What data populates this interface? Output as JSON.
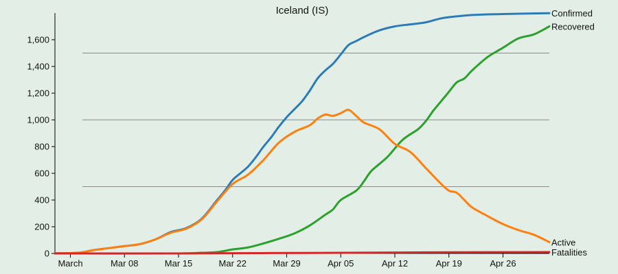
{
  "chart_data": {
    "type": "line",
    "title": "Iceland (IS)",
    "xlabel": "",
    "ylabel": "",
    "x_start": "2020-02-28",
    "x_end": "2020-05-02",
    "x_ticks": [
      {
        "date": "2020-03-01",
        "label": "March"
      },
      {
        "date": "2020-03-08",
        "label": "Mar 08"
      },
      {
        "date": "2020-03-15",
        "label": "Mar 15"
      },
      {
        "date": "2020-03-22",
        "label": "Mar 22"
      },
      {
        "date": "2020-03-29",
        "label": "Mar 29"
      },
      {
        "date": "2020-04-05",
        "label": "Apr 05"
      },
      {
        "date": "2020-04-12",
        "label": "Apr 12"
      },
      {
        "date": "2020-04-19",
        "label": "Apr 19"
      },
      {
        "date": "2020-04-26",
        "label": "Apr 26"
      }
    ],
    "ylim": [
      0,
      1800
    ],
    "y_ticks": [
      {
        "value": 0,
        "label": "0"
      },
      {
        "value": 200,
        "label": "200"
      },
      {
        "value": 400,
        "label": "400"
      },
      {
        "value": 600,
        "label": "600"
      },
      {
        "value": 800,
        "label": "800"
      },
      {
        "value": 1000,
        "label": "1,000"
      },
      {
        "value": 1200,
        "label": "1,200"
      },
      {
        "value": 1400,
        "label": "1,400"
      },
      {
        "value": 1600,
        "label": "1,600"
      }
    ],
    "gridlines": [
      500,
      1000,
      1500
    ],
    "legend": "line-end labels",
    "series": [
      {
        "name": "Confirmed",
        "color": "#2b7bb9",
        "points": [
          [
            "2020-02-28",
            1
          ],
          [
            "2020-03-02",
            5
          ],
          [
            "2020-03-04",
            25
          ],
          [
            "2020-03-06",
            40
          ],
          [
            "2020-03-08",
            55
          ],
          [
            "2020-03-10",
            70
          ],
          [
            "2020-03-12",
            105
          ],
          [
            "2020-03-14",
            160
          ],
          [
            "2020-03-16",
            190
          ],
          [
            "2020-03-18",
            260
          ],
          [
            "2020-03-20",
            400
          ],
          [
            "2020-03-21",
            470
          ],
          [
            "2020-03-22",
            550
          ],
          [
            "2020-03-23",
            600
          ],
          [
            "2020-03-24",
            650
          ],
          [
            "2020-03-25",
            720
          ],
          [
            "2020-03-26",
            800
          ],
          [
            "2020-03-27",
            870
          ],
          [
            "2020-03-28",
            950
          ],
          [
            "2020-03-29",
            1020
          ],
          [
            "2020-03-30",
            1080
          ],
          [
            "2020-03-31",
            1140
          ],
          [
            "2020-04-01",
            1220
          ],
          [
            "2020-04-02",
            1310
          ],
          [
            "2020-04-03",
            1370
          ],
          [
            "2020-04-04",
            1420
          ],
          [
            "2020-04-05",
            1490
          ],
          [
            "2020-04-06",
            1560
          ],
          [
            "2020-04-07",
            1590
          ],
          [
            "2020-04-08",
            1620
          ],
          [
            "2020-04-10",
            1670
          ],
          [
            "2020-04-12",
            1700
          ],
          [
            "2020-04-14",
            1715
          ],
          [
            "2020-04-16",
            1730
          ],
          [
            "2020-04-18",
            1760
          ],
          [
            "2020-04-20",
            1775
          ],
          [
            "2020-04-22",
            1785
          ],
          [
            "2020-04-24",
            1790
          ],
          [
            "2020-04-26",
            1792
          ],
          [
            "2020-04-28",
            1795
          ],
          [
            "2020-05-02",
            1799
          ]
        ]
      },
      {
        "name": "Recovered",
        "color": "#2ca02c",
        "points": [
          [
            "2020-02-28",
            0
          ],
          [
            "2020-03-14",
            0
          ],
          [
            "2020-03-18",
            5
          ],
          [
            "2020-03-20",
            10
          ],
          [
            "2020-03-22",
            30
          ],
          [
            "2020-03-24",
            45
          ],
          [
            "2020-03-26",
            75
          ],
          [
            "2020-03-28",
            110
          ],
          [
            "2020-03-30",
            150
          ],
          [
            "2020-04-01",
            210
          ],
          [
            "2020-04-03",
            290
          ],
          [
            "2020-04-04",
            330
          ],
          [
            "2020-04-05",
            400
          ],
          [
            "2020-04-07",
            470
          ],
          [
            "2020-04-08",
            540
          ],
          [
            "2020-04-09",
            620
          ],
          [
            "2020-04-11",
            720
          ],
          [
            "2020-04-13",
            850
          ],
          [
            "2020-04-15",
            930
          ],
          [
            "2020-04-16",
            990
          ],
          [
            "2020-04-17",
            1070
          ],
          [
            "2020-04-18",
            1140
          ],
          [
            "2020-04-19",
            1210
          ],
          [
            "2020-04-20",
            1280
          ],
          [
            "2020-04-21",
            1310
          ],
          [
            "2020-04-22",
            1370
          ],
          [
            "2020-04-24",
            1470
          ],
          [
            "2020-04-26",
            1540
          ],
          [
            "2020-04-28",
            1610
          ],
          [
            "2020-04-30",
            1640
          ],
          [
            "2020-05-02",
            1700
          ]
        ]
      },
      {
        "name": "Active",
        "color": "#ff7f0e",
        "points": [
          [
            "2020-02-28",
            1
          ],
          [
            "2020-03-02",
            5
          ],
          [
            "2020-03-04",
            25
          ],
          [
            "2020-03-06",
            40
          ],
          [
            "2020-03-08",
            55
          ],
          [
            "2020-03-10",
            70
          ],
          [
            "2020-03-12",
            105
          ],
          [
            "2020-03-14",
            155
          ],
          [
            "2020-03-16",
            185
          ],
          [
            "2020-03-18",
            255
          ],
          [
            "2020-03-20",
            390
          ],
          [
            "2020-03-22",
            520
          ],
          [
            "2020-03-24",
            590
          ],
          [
            "2020-03-26",
            700
          ],
          [
            "2020-03-28",
            830
          ],
          [
            "2020-03-30",
            910
          ],
          [
            "2020-04-01",
            960
          ],
          [
            "2020-04-02",
            1010
          ],
          [
            "2020-04-03",
            1040
          ],
          [
            "2020-04-04",
            1030
          ],
          [
            "2020-04-05",
            1050
          ],
          [
            "2020-04-06",
            1075
          ],
          [
            "2020-04-07",
            1030
          ],
          [
            "2020-04-08",
            980
          ],
          [
            "2020-04-10",
            930
          ],
          [
            "2020-04-12",
            820
          ],
          [
            "2020-04-14",
            760
          ],
          [
            "2020-04-16",
            640
          ],
          [
            "2020-04-18",
            520
          ],
          [
            "2020-04-19",
            470
          ],
          [
            "2020-04-20",
            455
          ],
          [
            "2020-04-21",
            400
          ],
          [
            "2020-04-22",
            345
          ],
          [
            "2020-04-24",
            280
          ],
          [
            "2020-04-26",
            220
          ],
          [
            "2020-04-28",
            175
          ],
          [
            "2020-04-30",
            140
          ],
          [
            "2020-05-02",
            85
          ]
        ]
      },
      {
        "name": "Fatalities",
        "color": "#d62728",
        "points": [
          [
            "2020-02-28",
            0
          ],
          [
            "2020-03-15",
            0
          ],
          [
            "2020-03-22",
            2
          ],
          [
            "2020-04-01",
            4
          ],
          [
            "2020-04-08",
            6
          ],
          [
            "2020-04-15",
            8
          ],
          [
            "2020-04-22",
            9
          ],
          [
            "2020-05-02",
            10
          ]
        ]
      }
    ]
  }
}
